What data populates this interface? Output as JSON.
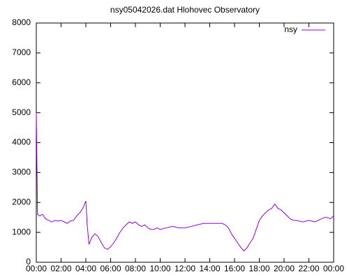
{
  "chart_data": {
    "type": "line",
    "title": "nsy05042026.dat Hlohovec Observatory",
    "x": [
      0,
      0.1,
      0.25,
      0.5,
      0.75,
      1,
      1.25,
      1.5,
      1.75,
      2,
      2.25,
      2.5,
      2.75,
      3,
      3.25,
      3.5,
      3.75,
      4,
      4.1,
      4.25,
      4.5,
      4.75,
      5,
      5.25,
      5.5,
      5.75,
      6,
      6.25,
      6.5,
      6.75,
      7,
      7.25,
      7.5,
      7.75,
      8,
      8.25,
      8.5,
      8.75,
      9,
      9.25,
      9.5,
      9.75,
      10,
      10.5,
      11,
      11.5,
      12,
      12.5,
      13,
      13.5,
      14,
      14.5,
      15,
      15.25,
      15.5,
      15.75,
      16,
      16.25,
      16.5,
      16.75,
      17,
      17.25,
      17.5,
      17.75,
      18,
      18.25,
      18.5,
      18.75,
      19,
      19.25,
      19.5,
      19.75,
      20,
      20.25,
      20.5,
      20.75,
      21,
      21.5,
      22,
      22.5,
      23,
      23.25,
      23.5,
      23.75,
      24
    ],
    "series": [
      {
        "name": "nsy",
        "color": "#9400d3",
        "values": [
          5000,
          1600,
          1550,
          1600,
          1450,
          1400,
          1350,
          1400,
          1380,
          1400,
          1350,
          1300,
          1380,
          1400,
          1550,
          1650,
          1800,
          2050,
          1300,
          600,
          850,
          950,
          850,
          650,
          480,
          430,
          520,
          650,
          820,
          1000,
          1150,
          1250,
          1350,
          1300,
          1350,
          1250,
          1200,
          1250,
          1150,
          1100,
          1100,
          1150,
          1100,
          1150,
          1200,
          1150,
          1150,
          1200,
          1250,
          1300,
          1300,
          1300,
          1300,
          1250,
          1150,
          950,
          800,
          650,
          500,
          380,
          480,
          650,
          800,
          1100,
          1400,
          1550,
          1650,
          1750,
          1800,
          1950,
          1800,
          1750,
          1650,
          1550,
          1450,
          1400,
          1400,
          1350,
          1400,
          1350,
          1450,
          1500,
          1500,
          1450,
          1550
        ]
      }
    ],
    "xlim": [
      0,
      24
    ],
    "xticks": [
      {
        "value": 0,
        "label": "00:00"
      },
      {
        "value": 2,
        "label": "02:00"
      },
      {
        "value": 4,
        "label": "04:00"
      },
      {
        "value": 6,
        "label": "06:00"
      },
      {
        "value": 8,
        "label": "08:00"
      },
      {
        "value": 10,
        "label": "10:00"
      },
      {
        "value": 12,
        "label": "12:00"
      },
      {
        "value": 14,
        "label": "14:00"
      },
      {
        "value": 16,
        "label": "16:00"
      },
      {
        "value": 18,
        "label": "18:00"
      },
      {
        "value": 20,
        "label": "20:00"
      },
      {
        "value": 22,
        "label": "22:00"
      },
      {
        "value": 24,
        "label": "00:00"
      }
    ],
    "ylim": [
      0,
      8000
    ],
    "yticks": [
      0,
      1000,
      2000,
      3000,
      4000,
      5000,
      6000,
      7000,
      8000
    ],
    "grid": false,
    "legend": "top-right"
  }
}
